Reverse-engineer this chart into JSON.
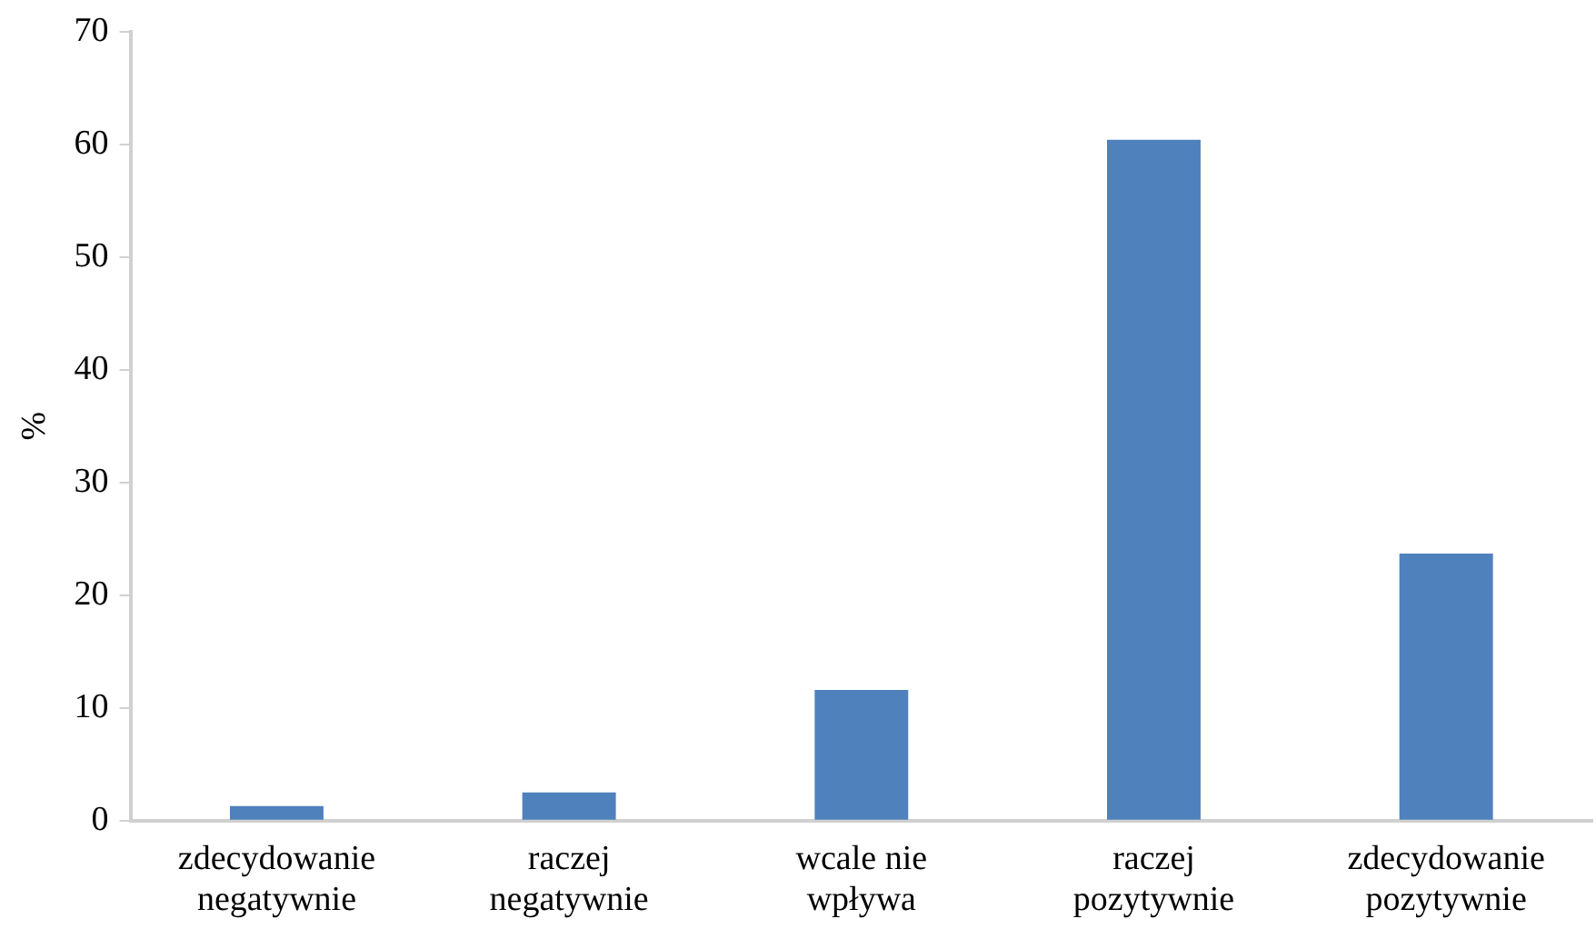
{
  "chart_data": {
    "type": "bar",
    "ylabel": "%",
    "categories": [
      "zdecydowanie\nnegatywnie",
      "raczej\nnegatywnie",
      "wcale nie\nwpływa",
      "raczej\npozytywnie",
      "zdecydowanie\npozytywnie"
    ],
    "values": [
      1.3,
      2.5,
      11.6,
      60.4,
      23.7
    ],
    "color": "#4f81bd",
    "ylim": [
      0,
      70
    ],
    "yticks": [
      0,
      10,
      20,
      30,
      40,
      50,
      60,
      70
    ],
    "grid": false,
    "legend": false
  }
}
